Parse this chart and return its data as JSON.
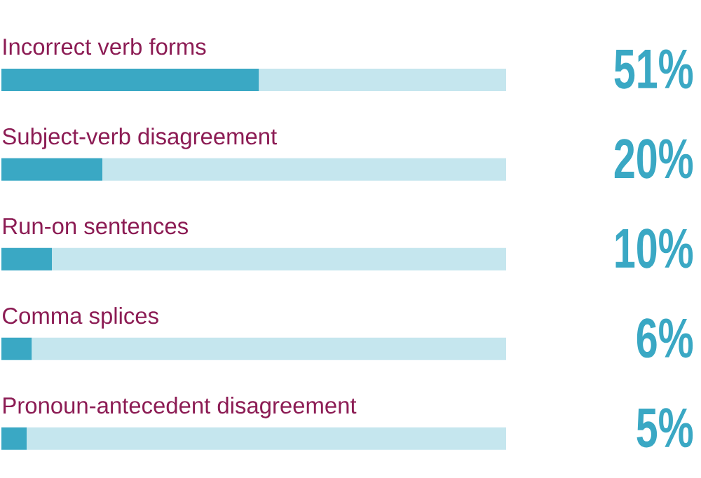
{
  "chart_data": {
    "type": "bar",
    "orientation": "horizontal",
    "stacked": true,
    "categories": [
      "Incorrect verb forms",
      "Subject-verb disagreement",
      "Run-on sentences",
      "Comma splices",
      "Pronoun-antecedent disagreement"
    ],
    "series": [
      {
        "color": "#3aa8c4",
        "values": [
          51,
          20,
          10,
          6,
          5
        ],
        "value_labels": [
          "51%",
          "20%",
          "10%",
          "6%",
          "5%"
        ]
      },
      {
        "color": "#c5e6ee",
        "values": [
          49,
          80,
          90,
          94,
          95
        ]
      }
    ],
    "xlim": [
      0,
      100
    ]
  }
}
